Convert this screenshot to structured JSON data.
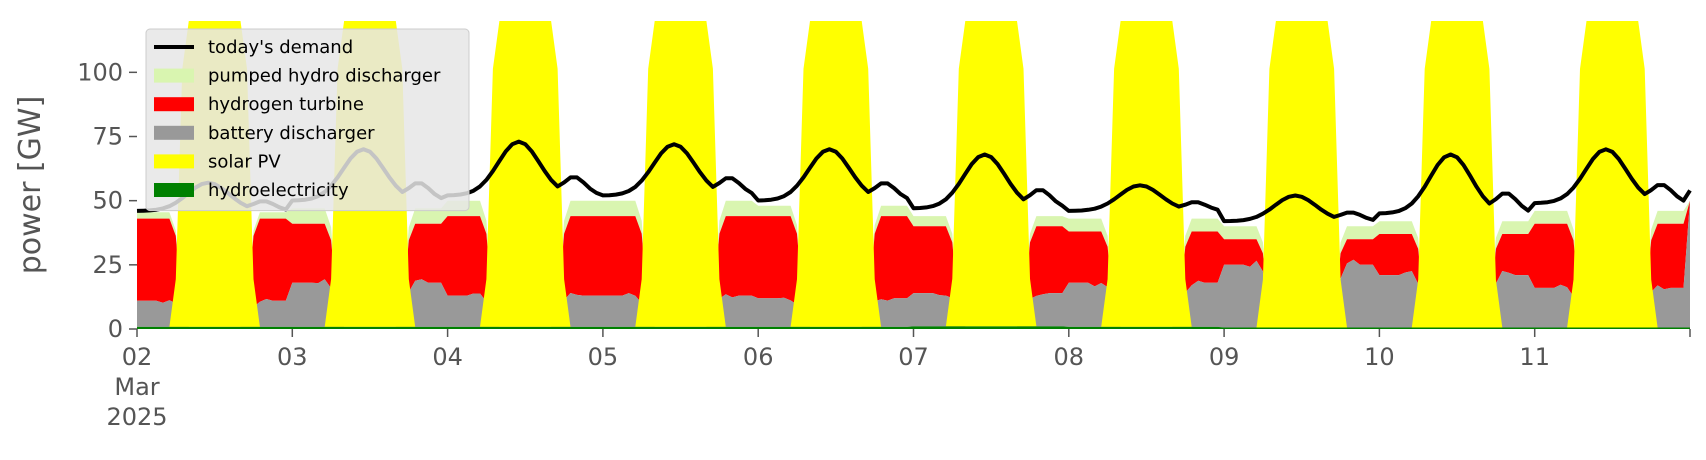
{
  "chart_data": {
    "type": "area",
    "ylabel": "power [GW]",
    "ylim": [
      0,
      120
    ],
    "xlim": [
      "2025-03-02 00:00",
      "2025-03-12 00:00"
    ],
    "yticks": [
      0,
      25,
      50,
      75,
      100
    ],
    "ytick_labels": [
      "0",
      "25",
      "50",
      "75",
      "100"
    ],
    "xticks": [
      {
        "date": "2025-03-02",
        "label": "02",
        "sublabel1": "Mar",
        "sublabel2": "2025"
      },
      {
        "date": "2025-03-03",
        "label": "03"
      },
      {
        "date": "2025-03-04",
        "label": "04"
      },
      {
        "date": "2025-03-05",
        "label": "05"
      },
      {
        "date": "2025-03-06",
        "label": "06"
      },
      {
        "date": "2025-03-07",
        "label": "07"
      },
      {
        "date": "2025-03-08",
        "label": "08"
      },
      {
        "date": "2025-03-09",
        "label": "09"
      },
      {
        "date": "2025-03-10",
        "label": "10"
      },
      {
        "date": "2025-03-11",
        "label": "11"
      }
    ],
    "grid": false,
    "legend_position": "top-left",
    "days": [
      {
        "date": "2025-03-02",
        "hydro": 0.8,
        "battery_night": 11,
        "hydrogen_night": 43,
        "pumped_night": 45.5,
        "demand_night": 46,
        "demand_day_peak": 57,
        "solar_peak": 120
      },
      {
        "date": "2025-03-03",
        "hydro": 0.8,
        "battery_night": 18,
        "hydrogen_night": 41,
        "pumped_night": 47,
        "demand_night": 50,
        "demand_day_peak": 70,
        "solar_peak": 120
      },
      {
        "date": "2025-03-04",
        "hydro": 0.8,
        "battery_night": 13,
        "hydrogen_night": 44,
        "pumped_night": 50,
        "demand_night": 52,
        "demand_day_peak": 73,
        "solar_peak": 120
      },
      {
        "date": "2025-03-05",
        "hydro": 0.8,
        "battery_night": 13,
        "hydrogen_night": 44,
        "pumped_night": 50,
        "demand_night": 52,
        "demand_day_peak": 72,
        "solar_peak": 120
      },
      {
        "date": "2025-03-06",
        "hydro": 0.8,
        "battery_night": 12,
        "hydrogen_night": 44,
        "pumped_night": 48,
        "demand_night": 50,
        "demand_day_peak": 70,
        "solar_peak": 120
      },
      {
        "date": "2025-03-07",
        "hydro": 1.0,
        "battery_night": 14,
        "hydrogen_night": 40,
        "pumped_night": 44,
        "demand_night": 47,
        "demand_day_peak": 68,
        "solar_peak": 120
      },
      {
        "date": "2025-03-08",
        "hydro": 0.8,
        "battery_night": 18,
        "hydrogen_night": 38,
        "pumped_night": 43,
        "demand_night": 46,
        "demand_day_peak": 56,
        "solar_peak": 120
      },
      {
        "date": "2025-03-09",
        "hydro": 0.6,
        "battery_night": 25,
        "hydrogen_night": 35,
        "pumped_night": 40,
        "demand_night": 42,
        "demand_day_peak": 52,
        "solar_peak": 120
      },
      {
        "date": "2025-03-10",
        "hydro": 0.6,
        "battery_night": 21,
        "hydrogen_night": 37,
        "pumped_night": 42,
        "demand_night": 45,
        "demand_day_peak": 68,
        "solar_peak": 120
      },
      {
        "date": "2025-03-11",
        "hydro": 0.6,
        "battery_night": 16,
        "hydrogen_night": 41,
        "pumped_night": 46,
        "demand_night": 49,
        "demand_day_peak": 70,
        "solar_peak": 120
      }
    ],
    "series": [
      {
        "key": "demand",
        "name": "today's demand",
        "color": "#000000",
        "type": "line"
      },
      {
        "key": "pumped",
        "name": "pumped hydro discharger",
        "color": "#d9f5b0",
        "type": "area"
      },
      {
        "key": "hydrogen",
        "name": "hydrogen turbine",
        "color": "#ff0000",
        "type": "area"
      },
      {
        "key": "battery",
        "name": "battery discharger",
        "color": "#999999",
        "type": "area"
      },
      {
        "key": "solar",
        "name": "solar PV",
        "color": "#ffff00",
        "type": "area"
      },
      {
        "key": "hydro",
        "name": "hydroelectricity",
        "color": "#008000",
        "type": "area"
      }
    ],
    "legend_background": "#e6e6e6",
    "text_color": "#555555"
  }
}
